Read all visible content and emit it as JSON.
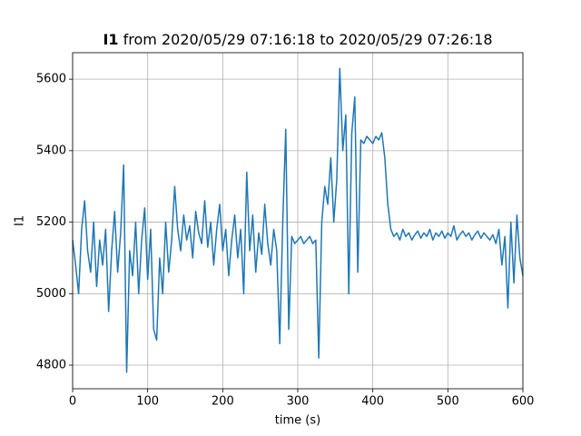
{
  "chart_data": {
    "type": "line",
    "title_signal": "I1",
    "title": "from 2020/05/29 07:16:18 to 2020/05/29 07:26:18",
    "xlabel": "time (s)",
    "ylabel": "I1",
    "xlim": [
      0,
      600
    ],
    "ylim": [
      4734,
      5674
    ],
    "xticks": [
      0,
      100,
      200,
      300,
      400,
      500,
      600
    ],
    "yticks": [
      4800,
      5000,
      5200,
      5400,
      5600
    ],
    "grid": true,
    "x": [
      0,
      4,
      8,
      12,
      16,
      20,
      24,
      28,
      32,
      36,
      40,
      44,
      48,
      52,
      56,
      60,
      64,
      68,
      72,
      76,
      80,
      84,
      88,
      92,
      96,
      100,
      104,
      108,
      112,
      116,
      120,
      124,
      128,
      132,
      136,
      140,
      144,
      148,
      152,
      156,
      160,
      164,
      168,
      172,
      176,
      180,
      184,
      188,
      192,
      196,
      200,
      204,
      208,
      212,
      216,
      220,
      224,
      228,
      232,
      236,
      240,
      244,
      248,
      252,
      256,
      260,
      264,
      268,
      272,
      276,
      280,
      284,
      288,
      292,
      296,
      300,
      304,
      308,
      312,
      316,
      320,
      324,
      328,
      332,
      336,
      340,
      344,
      348,
      352,
      356,
      360,
      364,
      368,
      372,
      376,
      380,
      384,
      388,
      392,
      396,
      400,
      404,
      408,
      412,
      416,
      420,
      424,
      428,
      432,
      436,
      440,
      444,
      448,
      452,
      456,
      460,
      464,
      468,
      472,
      476,
      480,
      484,
      488,
      492,
      496,
      500,
      504,
      508,
      512,
      516,
      520,
      524,
      528,
      532,
      536,
      540,
      544,
      548,
      552,
      556,
      560,
      564,
      568,
      572,
      576,
      580,
      584,
      588,
      592,
      596,
      600
    ],
    "series": [
      {
        "name": "I1",
        "color": "#1f77b4",
        "values": [
          5150,
          5080,
          5000,
          5180,
          5260,
          5120,
          5060,
          5200,
          5020,
          5150,
          5080,
          5180,
          4950,
          5120,
          5230,
          5060,
          5170,
          5360,
          4780,
          5120,
          5050,
          5200,
          5000,
          5150,
          5240,
          5040,
          5180,
          4900,
          4870,
          5100,
          5000,
          5200,
          5060,
          5150,
          5300,
          5180,
          5120,
          5220,
          5150,
          5190,
          5100,
          5230,
          5170,
          5140,
          5260,
          5130,
          5200,
          5080,
          5180,
          5250,
          5120,
          5180,
          5050,
          5150,
          5220,
          5100,
          5180,
          5000,
          5340,
          5120,
          5220,
          5060,
          5170,
          5110,
          5250,
          5140,
          5080,
          5180,
          5120,
          4860,
          5200,
          5460,
          4900,
          5160,
          5140,
          5150,
          5160,
          5140,
          5150,
          5160,
          5140,
          5150,
          4820,
          5200,
          5300,
          5250,
          5380,
          5200,
          5320,
          5630,
          5400,
          5500,
          5000,
          5450,
          5550,
          5060,
          5430,
          5420,
          5440,
          5430,
          5420,
          5440,
          5430,
          5450,
          5380,
          5250,
          5180,
          5160,
          5170,
          5150,
          5180,
          5160,
          5170,
          5150,
          5165,
          5175,
          5155,
          5170,
          5160,
          5180,
          5150,
          5170,
          5160,
          5175,
          5155,
          5170,
          5160,
          5190,
          5150,
          5165,
          5175,
          5160,
          5170,
          5150,
          5165,
          5175,
          5155,
          5170,
          5160,
          5150,
          5165,
          5140,
          5180,
          5080,
          5160,
          4960,
          5200,
          5030,
          5220,
          5100,
          5050
        ]
      }
    ]
  }
}
